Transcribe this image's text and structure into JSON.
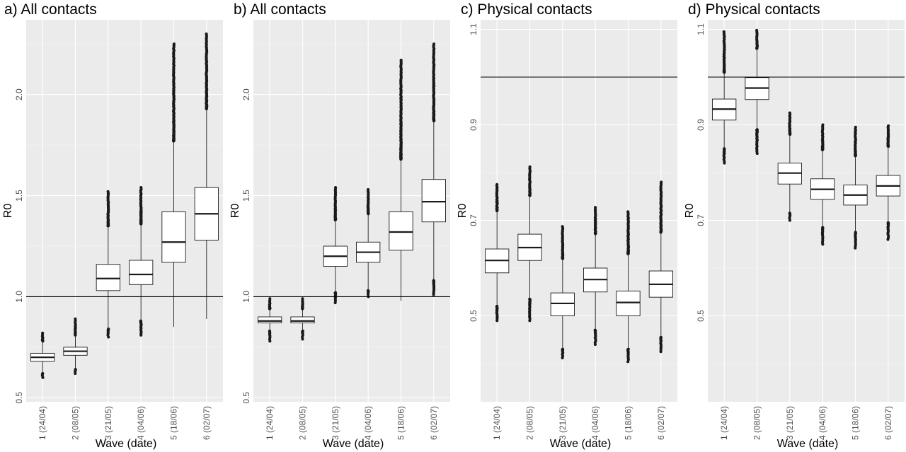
{
  "chart_data": [
    {
      "type": "boxplot",
      "title": "a) All contacts",
      "xlabel": "Wave (date)",
      "ylabel": "R0",
      "ylim": [
        0.48,
        2.37
      ],
      "yticks": [
        0.5,
        1.0,
        1.5,
        2.0
      ],
      "yticklabels": [
        "0.5",
        "1.0",
        "1.5",
        "2.0"
      ],
      "hline": 1.0,
      "grid": true,
      "categories": [
        "1 (24/04)",
        "2 (08/05)",
        "3 (21/05)",
        "4 (04/06)",
        "5 (18/06)",
        "6 (02/07)"
      ],
      "boxes": [
        {
          "q1": 0.68,
          "median": 0.7,
          "q3": 0.72,
          "whisker_low": 0.62,
          "whisker_high": 0.78,
          "outlier_low": 0.6,
          "outlier_high": 0.82
        },
        {
          "q1": 0.71,
          "median": 0.73,
          "q3": 0.75,
          "whisker_low": 0.64,
          "whisker_high": 0.81,
          "outlier_low": 0.62,
          "outlier_high": 0.89
        },
        {
          "q1": 1.03,
          "median": 1.09,
          "q3": 1.16,
          "whisker_low": 0.84,
          "whisker_high": 1.35,
          "outlier_low": 0.8,
          "outlier_high": 1.52
        },
        {
          "q1": 1.06,
          "median": 1.11,
          "q3": 1.18,
          "whisker_low": 0.88,
          "whisker_high": 1.36,
          "outlier_low": 0.81,
          "outlier_high": 1.54
        },
        {
          "q1": 1.17,
          "median": 1.27,
          "q3": 1.42,
          "whisker_low": 0.85,
          "whisker_high": 1.77,
          "outlier_low": null,
          "outlier_high": 2.25
        },
        {
          "q1": 1.28,
          "median": 1.41,
          "q3": 1.54,
          "whisker_low": 0.89,
          "whisker_high": 1.93,
          "outlier_low": null,
          "outlier_high": 2.3
        }
      ]
    },
    {
      "type": "boxplot",
      "title": "b) All contacts",
      "xlabel": "Wave (date)",
      "ylabel": "R0",
      "ylim": [
        0.48,
        2.37
      ],
      "yticks": [
        0.5,
        1.0,
        1.5,
        2.0
      ],
      "yticklabels": [
        "0.5",
        "1.0",
        "1.5",
        "2.0"
      ],
      "hline": 1.0,
      "grid": true,
      "categories": [
        "1 (24/04)",
        "2 (08/05)",
        "3 (21/05)",
        "4 (04/06)",
        "5 (18/06)",
        "6 (02/07)"
      ],
      "boxes": [
        {
          "q1": 0.87,
          "median": 0.88,
          "q3": 0.9,
          "whisker_low": 0.83,
          "whisker_high": 0.94,
          "outlier_low": 0.78,
          "outlier_high": 0.99
        },
        {
          "q1": 0.87,
          "median": 0.88,
          "q3": 0.9,
          "whisker_low": 0.83,
          "whisker_high": 0.94,
          "outlier_low": 0.79,
          "outlier_high": 0.99
        },
        {
          "q1": 1.15,
          "median": 1.2,
          "q3": 1.25,
          "whisker_low": 1.02,
          "whisker_high": 1.38,
          "outlier_low": 0.97,
          "outlier_high": 1.54
        },
        {
          "q1": 1.17,
          "median": 1.22,
          "q3": 1.27,
          "whisker_low": 1.03,
          "whisker_high": 1.41,
          "outlier_low": 1.0,
          "outlier_high": 1.53
        },
        {
          "q1": 1.23,
          "median": 1.32,
          "q3": 1.42,
          "whisker_low": 0.98,
          "whisker_high": 1.68,
          "outlier_low": null,
          "outlier_high": 2.17
        },
        {
          "q1": 1.37,
          "median": 1.47,
          "q3": 1.58,
          "whisker_low": 1.08,
          "whisker_high": 1.87,
          "outlier_low": 1.01,
          "outlier_high": 2.25
        }
      ]
    },
    {
      "type": "boxplot",
      "title": "c) Physical contacts",
      "xlabel": "Wave (date)",
      "ylabel": "R0",
      "ylim": [
        0.32,
        1.12
      ],
      "yticks": [
        0.5,
        0.7,
        0.9,
        1.1
      ],
      "yticklabels": [
        "0.5",
        "0.7",
        "0.9",
        "1.1"
      ],
      "hline": 1.0,
      "grid": true,
      "categories": [
        "1 (24/04)",
        "2 (08/05)",
        "3 (21/05)",
        "4 (04/06)",
        "5 (18/06)",
        "6 (02/07)"
      ],
      "boxes": [
        {
          "q1": 0.59,
          "median": 0.616,
          "q3": 0.64,
          "whisker_low": 0.52,
          "whisker_high": 0.72,
          "outlier_low": 0.49,
          "outlier_high": 0.775
        },
        {
          "q1": 0.616,
          "median": 0.643,
          "q3": 0.671,
          "whisker_low": 0.535,
          "whisker_high": 0.752,
          "outlier_low": 0.49,
          "outlier_high": 0.812
        },
        {
          "q1": 0.5,
          "median": 0.526,
          "q3": 0.548,
          "whisker_low": 0.43,
          "whisker_high": 0.62,
          "outlier_low": 0.412,
          "outlier_high": 0.687
        },
        {
          "q1": 0.55,
          "median": 0.576,
          "q3": 0.6,
          "whisker_low": 0.47,
          "whisker_high": 0.672,
          "outlier_low": 0.44,
          "outlier_high": 0.727
        },
        {
          "q1": 0.5,
          "median": 0.528,
          "q3": 0.552,
          "whisker_low": 0.43,
          "whisker_high": 0.63,
          "outlier_low": 0.404,
          "outlier_high": 0.718
        },
        {
          "q1": 0.539,
          "median": 0.566,
          "q3": 0.594,
          "whisker_low": 0.455,
          "whisker_high": 0.675,
          "outlier_low": 0.425,
          "outlier_high": 0.78
        }
      ]
    },
    {
      "type": "boxplot",
      "title": "d) Physical contacts",
      "xlabel": "Wave (date)",
      "ylabel": "R0",
      "ylim": [
        0.32,
        1.12
      ],
      "yticks": [
        0.5,
        0.7,
        0.9,
        1.1
      ],
      "yticklabels": [
        "0.5",
        "0.7",
        "0.9",
        "1.1"
      ],
      "hline": 1.0,
      "grid": true,
      "categories": [
        "1 (24/04)",
        "2 (08/05)",
        "3 (21/05)",
        "4 (04/06)",
        "5 (18/06)",
        "6 (02/07)"
      ],
      "boxes": [
        {
          "q1": 0.91,
          "median": 0.933,
          "q3": 0.954,
          "whisker_low": 0.85,
          "whisker_high": 1.01,
          "outlier_low": 0.82,
          "outlier_high": 1.095
        },
        {
          "q1": 0.953,
          "median": 0.977,
          "q3": 0.999,
          "whisker_low": 0.89,
          "whisker_high": 1.06,
          "outlier_low": 0.84,
          "outlier_high": 1.098
        },
        {
          "q1": 0.776,
          "median": 0.799,
          "q3": 0.82,
          "whisker_low": 0.715,
          "whisker_high": 0.88,
          "outlier_low": 0.7,
          "outlier_high": 0.925
        },
        {
          "q1": 0.744,
          "median": 0.765,
          "q3": 0.787,
          "whisker_low": 0.685,
          "whisker_high": 0.848,
          "outlier_low": 0.65,
          "outlier_high": 0.9
        },
        {
          "q1": 0.732,
          "median": 0.753,
          "q3": 0.774,
          "whisker_low": 0.675,
          "whisker_high": 0.835,
          "outlier_low": 0.642,
          "outlier_high": 0.895
        },
        {
          "q1": 0.751,
          "median": 0.772,
          "q3": 0.794,
          "whisker_low": 0.695,
          "whisker_high": 0.855,
          "outlier_low": 0.66,
          "outlier_high": 0.898
        }
      ]
    }
  ],
  "colors": {
    "panel_bg": "#ebebeb",
    "grid_major": "#ffffff",
    "grid_minor": "#f5f5f5",
    "box_fill": "#ffffff",
    "stroke": "#1a1a1a",
    "tick_text": "#4d4d4d"
  }
}
